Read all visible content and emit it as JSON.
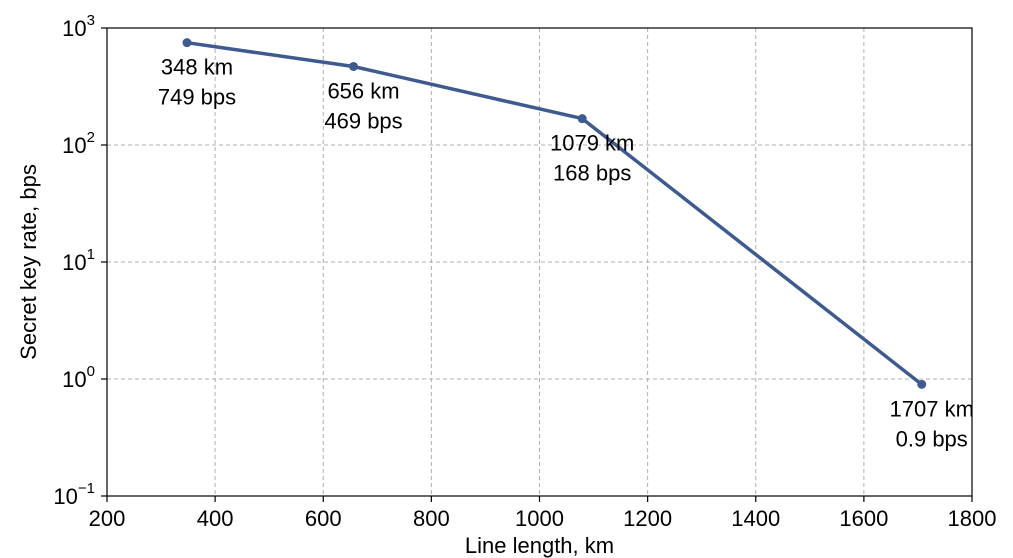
{
  "chart_data": {
    "type": "line",
    "xlabel": "Line length, km",
    "ylabel": "Secret key rate, bps",
    "xlim": [
      200,
      1800
    ],
    "ylim": [
      0.1,
      1000
    ],
    "yscale": "log",
    "grid": true,
    "x_ticks": [
      "200",
      "400",
      "600",
      "800",
      "1000",
      "1200",
      "1400",
      "1600",
      "1800"
    ],
    "y_ticks": [
      {
        "value": 0.1,
        "base": "10",
        "exp": "−1"
      },
      {
        "value": 1,
        "base": "10",
        "exp": "0"
      },
      {
        "value": 10,
        "base": "10",
        "exp": "1"
      },
      {
        "value": 100,
        "base": "10",
        "exp": "2"
      },
      {
        "value": 1000,
        "base": "10",
        "exp": "3"
      }
    ],
    "line_color": "#3e5a8e",
    "series": [
      {
        "x": [
          348,
          656,
          1079,
          1707
        ],
        "y": [
          749,
          469,
          168,
          0.9
        ]
      }
    ],
    "annotations": [
      {
        "line1": "348 km",
        "line2": "749 bps"
      },
      {
        "line1": "656 km",
        "line2": "469 bps"
      },
      {
        "line1": "1079 km",
        "line2": "168 bps"
      },
      {
        "line1": "1707 km",
        "line2": "0.9 bps"
      }
    ]
  }
}
